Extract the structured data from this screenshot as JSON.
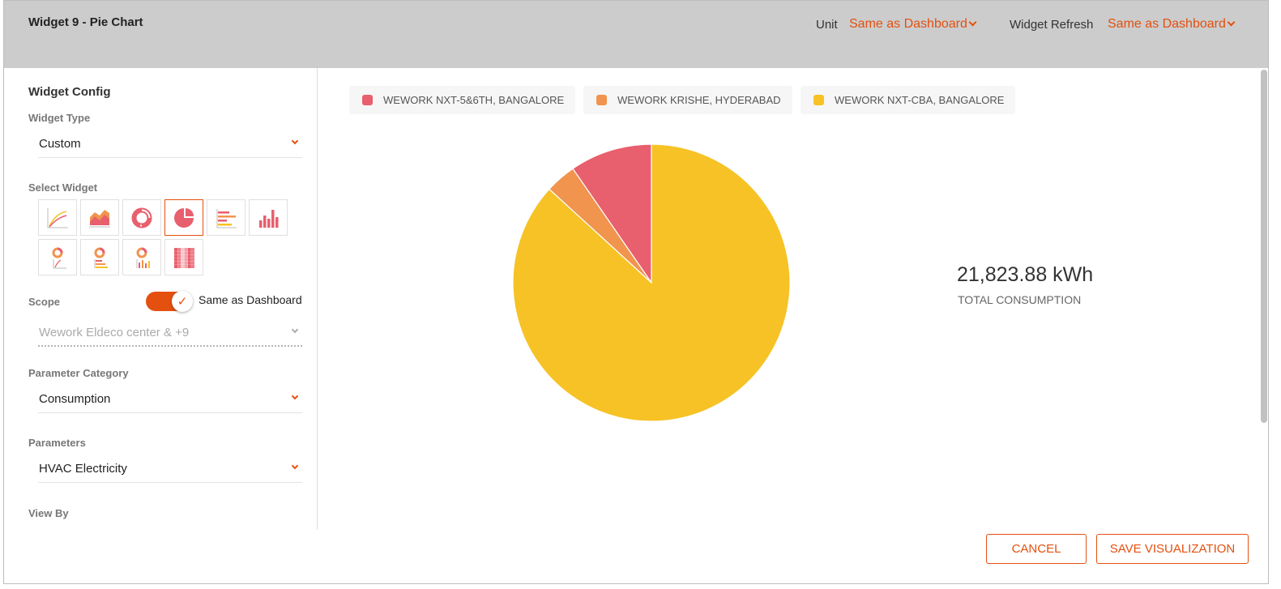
{
  "header": {
    "title": "Widget 9 - Pie Chart",
    "unit_label": "Unit",
    "unit_value": "Same as Dashboard",
    "refresh_label": "Widget Refresh",
    "refresh_value": "Same as Dashboard"
  },
  "config": {
    "section_title": "Widget Config",
    "widget_type_label": "Widget Type",
    "widget_type_value": "Custom",
    "select_widget_label": "Select Widget",
    "widget_options": [
      "line",
      "area",
      "donut",
      "pie",
      "horizontal-bar",
      "vertical-bar",
      "donut-line",
      "donut-horizontal-bar",
      "donut-bar",
      "heatmap"
    ],
    "selected_widget": "pie",
    "scope_label": "Scope",
    "scope_toggle_on": true,
    "scope_toggle_label": "Same as Dashboard",
    "scope_value": "Wework Eldeco center & +9",
    "parameter_category_label": "Parameter Category",
    "parameter_category_value": "Consumption",
    "parameters_label": "Parameters",
    "parameters_value": "HVAC Electricity",
    "view_by_label": "View By"
  },
  "legend": [
    {
      "label": "WEWORK NXT-5&6TH, BANGALORE",
      "color": "#e85f6d"
    },
    {
      "label": "WEWORK KRISHE, HYDERABAD",
      "color": "#f0944e"
    },
    {
      "label": "WEWORK NXT-CBA, BANGALORE",
      "color": "#f6c225"
    }
  ],
  "chart_data": {
    "type": "pie",
    "categories": [
      "WEWORK NXT-5&6TH, BANGALORE",
      "WEWORK KRISHE, HYDERABAD",
      "WEWORK NXT-CBA, BANGALORE"
    ],
    "values": [
      0.096,
      0.036,
      0.868
    ],
    "colors": [
      "#e85f6d",
      "#f0944e",
      "#f6c225"
    ],
    "legend_position": "top"
  },
  "summary": {
    "total_value": "21,823.88 kWh",
    "total_label": "TOTAL CONSUMPTION"
  },
  "actions": {
    "cancel": "CANCEL",
    "save": "SAVE VISUALIZATION"
  },
  "colors": {
    "accent": "#e4500f",
    "header_bg": "#cccccc"
  }
}
